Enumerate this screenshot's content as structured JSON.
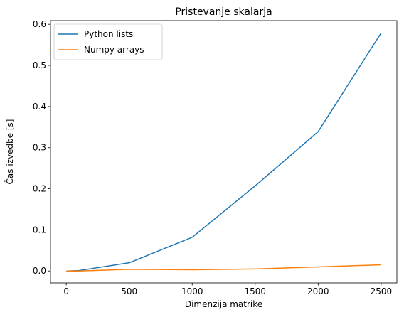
{
  "chart_data": {
    "type": "line",
    "title": "Pristevanje skalarja",
    "xlabel": "Dimenzija matrike",
    "ylabel": "Čas izvedbe [s]",
    "xlim": [
      -125,
      2625
    ],
    "ylim": [
      -0.029,
      0.609
    ],
    "xticks": [
      0,
      500,
      1000,
      1500,
      2000,
      2500
    ],
    "yticks": [
      0.0,
      0.1,
      0.2,
      0.3,
      0.4,
      0.5,
      0.6
    ],
    "grid": false,
    "legend_position": "top-left",
    "series": [
      {
        "name": "Python lists",
        "color": "#1f77b4",
        "x": [
          1,
          100,
          500,
          1000,
          1500,
          2000,
          2500
        ],
        "y": [
          0.0,
          0.001,
          0.02,
          0.082,
          0.207,
          0.339,
          0.579
        ]
      },
      {
        "name": "Numpy arrays",
        "color": "#ff7f0e",
        "x": [
          1,
          100,
          500,
          1000,
          1500,
          2000,
          2500
        ],
        "y": [
          0.0,
          0.0,
          0.004,
          0.003,
          0.005,
          0.01,
          0.015
        ]
      }
    ]
  }
}
